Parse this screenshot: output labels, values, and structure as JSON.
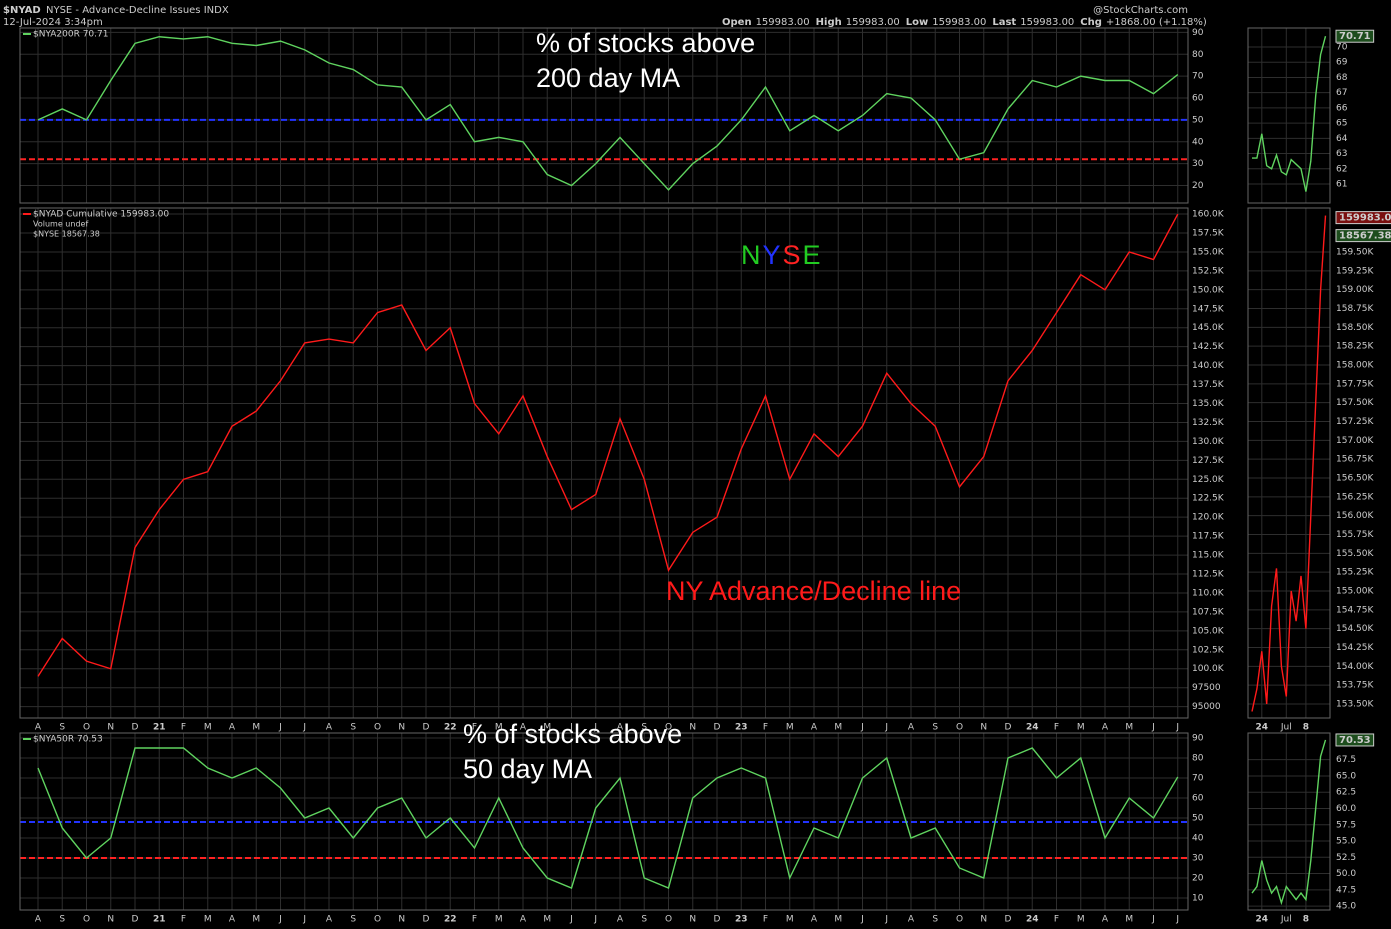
{
  "header": {
    "symbol": "$NYAD",
    "description": "NYSE - Advance-Decline Issues INDX",
    "date": "12-Jul-2024 3:34pm",
    "quote": [
      {
        "label": "Open",
        "value": "159983.00"
      },
      {
        "label": "High",
        "value": "159983.00"
      },
      {
        "label": "Low",
        "value": "159983.00"
      },
      {
        "label": "Last",
        "value": "159983.00"
      },
      {
        "label": "Chg",
        "value": "+1868.00 (+1.18%)"
      }
    ],
    "source": "@StockCharts.com"
  },
  "chart_data": [
    {
      "type": "line",
      "legend": "$NYA200R 70.71",
      "series": [
        {
          "name": "$NYA200R",
          "color": "#5fd35f",
          "values": [
            50,
            55,
            50,
            68,
            85,
            88,
            87,
            88,
            85,
            84,
            86,
            82,
            76,
            73,
            66,
            65,
            50,
            57,
            40,
            42,
            40,
            25,
            20,
            30,
            42,
            30,
            18,
            30,
            38,
            50,
            65,
            45,
            52,
            45,
            52,
            62,
            60,
            50,
            32,
            35,
            55,
            68,
            65,
            70,
            68,
            68,
            62,
            70.71
          ]
        }
      ],
      "ylim": [
        12,
        92
      ],
      "yticks": [
        20,
        30,
        40,
        50,
        60,
        70,
        80,
        90
      ],
      "ref_lines": [
        {
          "value": 50,
          "color": "#2233ff"
        },
        {
          "value": 32,
          "color": "#ff2222"
        }
      ],
      "annotation": [
        "% of stocks above",
        "200 day MA"
      ]
    },
    {
      "type": "line",
      "legend": "$NYAD Cumulative 159983.00",
      "legend_extra": [
        "Volume undef",
        "$NYSE 18567.38"
      ],
      "categories": [
        "A",
        "S",
        "O",
        "N",
        "D",
        "21",
        "F",
        "M",
        "A",
        "M",
        "J",
        "J",
        "A",
        "S",
        "O",
        "N",
        "D",
        "22",
        "F",
        "M",
        "A",
        "M",
        "J",
        "J",
        "A",
        "S",
        "O",
        "N",
        "D",
        "23",
        "F",
        "M",
        "A",
        "M",
        "J",
        "J",
        "A",
        "S",
        "O",
        "N",
        "D",
        "24",
        "F",
        "M",
        "A",
        "M",
        "J",
        "J"
      ],
      "series": [
        {
          "name": "$NYAD",
          "color": "#ff1a1a",
          "values": [
            99000,
            104000,
            101000,
            100000,
            116000,
            121000,
            125000,
            126000,
            132000,
            134000,
            138000,
            143000,
            143500,
            143000,
            147000,
            148000,
            142000,
            145000,
            135000,
            131000,
            136000,
            128000,
            121000,
            123000,
            133000,
            125000,
            113000,
            118000,
            120000,
            129000,
            136000,
            125000,
            131000,
            128000,
            132000,
            139000,
            135000,
            132000,
            124000,
            128000,
            138000,
            142000,
            147000,
            152000,
            150000,
            155000,
            154000,
            159983
          ]
        }
      ],
      "ylim": [
        93500,
        160800
      ],
      "yticks": [
        95000,
        97500,
        {
          "value": 100000,
          "label": "100.0K"
        },
        {
          "value": 102500,
          "label": "102.5K"
        },
        {
          "value": 105000,
          "label": "105.0K"
        },
        {
          "value": 107500,
          "label": "107.5K"
        },
        {
          "value": 110000,
          "label": "110.0K"
        },
        {
          "value": 112500,
          "label": "112.5K"
        },
        {
          "value": 115000,
          "label": "115.0K"
        },
        {
          "value": 117500,
          "label": "117.5K"
        },
        {
          "value": 120000,
          "label": "120.0K"
        },
        {
          "value": 122500,
          "label": "122.5K"
        },
        {
          "value": 125000,
          "label": "125.0K"
        },
        {
          "value": 127500,
          "label": "127.5K"
        },
        {
          "value": 130000,
          "label": "130.0K"
        },
        {
          "value": 132500,
          "label": "132.5K"
        },
        {
          "value": 135000,
          "label": "135.0K"
        },
        {
          "value": 137500,
          "label": "137.5K"
        },
        {
          "value": 140000,
          "label": "140.0K"
        },
        {
          "value": 142500,
          "label": "142.5K"
        },
        {
          "value": 145000,
          "label": "145.0K"
        },
        {
          "value": 147500,
          "label": "147.5K"
        },
        {
          "value": 150000,
          "label": "150.0K"
        },
        {
          "value": 152500,
          "label": "152.5K"
        },
        {
          "value": 155000,
          "label": "155.0K"
        },
        {
          "value": 157500,
          "label": "157.5K"
        },
        {
          "value": 160000,
          "label": "160.0K"
        }
      ],
      "annotation": [
        "NY Advance/Decline line"
      ],
      "nyse": [
        {
          "text": "N",
          "color": "#22cc22"
        },
        {
          "text": "Y",
          "color": "#2233ff"
        },
        {
          "text": "S",
          "color": "#ff2222"
        },
        {
          "text": "E",
          "color": "#22cc22"
        }
      ]
    },
    {
      "type": "line",
      "legend": "$NYA50R 70.53",
      "categories": [
        "A",
        "S",
        "O",
        "N",
        "D",
        "21",
        "F",
        "M",
        "A",
        "M",
        "J",
        "J",
        "A",
        "S",
        "O",
        "N",
        "D",
        "22",
        "F",
        "M",
        "A",
        "M",
        "J",
        "J",
        "A",
        "S",
        "O",
        "N",
        "D",
        "23",
        "F",
        "M",
        "A",
        "M",
        "J",
        "J",
        "A",
        "S",
        "O",
        "N",
        "D",
        "24",
        "F",
        "M",
        "A",
        "M",
        "J",
        "J"
      ],
      "series": [
        {
          "name": "$NYA50R",
          "color": "#5fd35f",
          "values": [
            75,
            45,
            30,
            40,
            85,
            85,
            85,
            75,
            70,
            75,
            65,
            50,
            55,
            40,
            55,
            60,
            40,
            50,
            35,
            60,
            35,
            20,
            15,
            55,
            70,
            20,
            15,
            60,
            70,
            75,
            70,
            20,
            45,
            40,
            70,
            80,
            40,
            45,
            25,
            20,
            80,
            85,
            70,
            80,
            40,
            60,
            50,
            70.53
          ]
        }
      ],
      "ylim": [
        4,
        92.5
      ],
      "yticks": [
        10,
        20,
        30,
        40,
        50,
        60,
        70,
        80,
        90
      ],
      "ref_lines": [
        {
          "value": 48,
          "color": "#2233ff"
        },
        {
          "value": 30,
          "color": "#ff2222"
        }
      ],
      "annotation": [
        "% of stocks above",
        "50 day MA"
      ]
    },
    {
      "type": "line",
      "series": [
        {
          "name": "$NYA200R",
          "color": "#5fd35f",
          "values": [
            62.7,
            62.7,
            64.3,
            62.2,
            62,
            62.9,
            61.8,
            61.6,
            62.6,
            62.3,
            62,
            60.5,
            62.5,
            66.8,
            69.5,
            70.71
          ]
        }
      ],
      "ylim": [
        59.75,
        71.25
      ],
      "yticks": [
        61,
        62,
        63,
        64,
        65,
        66,
        67,
        68,
        69,
        70
      ]
    },
    {
      "type": "line",
      "categories": [
        null,
        null,
        "24",
        null,
        null,
        null,
        null,
        "Jul",
        null,
        null,
        null,
        "8",
        null,
        null,
        null,
        null
      ],
      "series": [
        {
          "name": "$NYAD",
          "color": "#ff1a1a",
          "values": [
            153400,
            153700,
            154200,
            153500,
            154800,
            155300,
            154000,
            153600,
            155000,
            154600,
            155200,
            154500,
            156000,
            157500,
            159000,
            159983
          ]
        }
      ],
      "last_label": "159983.00",
      "overlay_last_label": "18567.38",
      "ylim": [
        153314,
        160084
      ],
      "yticks": [
        {
          "value": 153500,
          "label": "153.50K"
        },
        {
          "value": 153750,
          "label": "153.75K"
        },
        {
          "value": 154000,
          "label": "154.00K"
        },
        {
          "value": 154250,
          "label": "154.25K"
        },
        {
          "value": 154500,
          "label": "154.50K"
        },
        {
          "value": 154750,
          "label": "154.75K"
        },
        {
          "value": 155000,
          "label": "155.00K"
        },
        {
          "value": 155250,
          "label": "155.25K"
        },
        {
          "value": 155500,
          "label": "155.50K"
        },
        {
          "value": 155750,
          "label": "155.75K"
        },
        {
          "value": 156000,
          "label": "156.00K"
        },
        {
          "value": 156250,
          "label": "156.25K"
        },
        {
          "value": 156500,
          "label": "156.50K"
        },
        {
          "value": 156750,
          "label": "156.75K"
        },
        {
          "value": 157000,
          "label": "157.00K"
        },
        {
          "value": 157250,
          "label": "157.25K"
        },
        {
          "value": 157500,
          "label": "157.50K"
        },
        {
          "value": 157750,
          "label": "157.75K"
        },
        {
          "value": 158000,
          "label": "158.00K"
        },
        {
          "value": 158250,
          "label": "158.25K"
        },
        {
          "value": 158500,
          "label": "158.50K"
        },
        {
          "value": 158750,
          "label": "158.75K"
        },
        {
          "value": 159000,
          "label": "159.00K"
        },
        {
          "value": 159250,
          "label": "159.25K"
        },
        {
          "value": 159500,
          "label": "159.50K"
        }
      ]
    },
    {
      "type": "line",
      "categories": [
        null,
        null,
        "24",
        null,
        null,
        null,
        null,
        "Jul",
        null,
        null,
        null,
        "8",
        null,
        null,
        null,
        null
      ],
      "series": [
        {
          "name": "$NYA50R",
          "color": "#5fd35f",
          "values": [
            47,
            48,
            52,
            49,
            47,
            48,
            45.5,
            48,
            47,
            46,
            47,
            46,
            52,
            60,
            68,
            70.53
          ]
        }
      ],
      "ylim": [
        44.4,
        71.6
      ],
      "yticks": [
        {
          "value": 45,
          "label": "45.0"
        },
        47.5,
        {
          "value": 50,
          "label": "50.0"
        },
        52.5,
        {
          "value": 55,
          "label": "55.0"
        },
        57.5,
        {
          "value": 60,
          "label": "60.0"
        },
        62.5,
        {
          "value": 65,
          "label": "65.0"
        },
        67.5
      ]
    }
  ]
}
